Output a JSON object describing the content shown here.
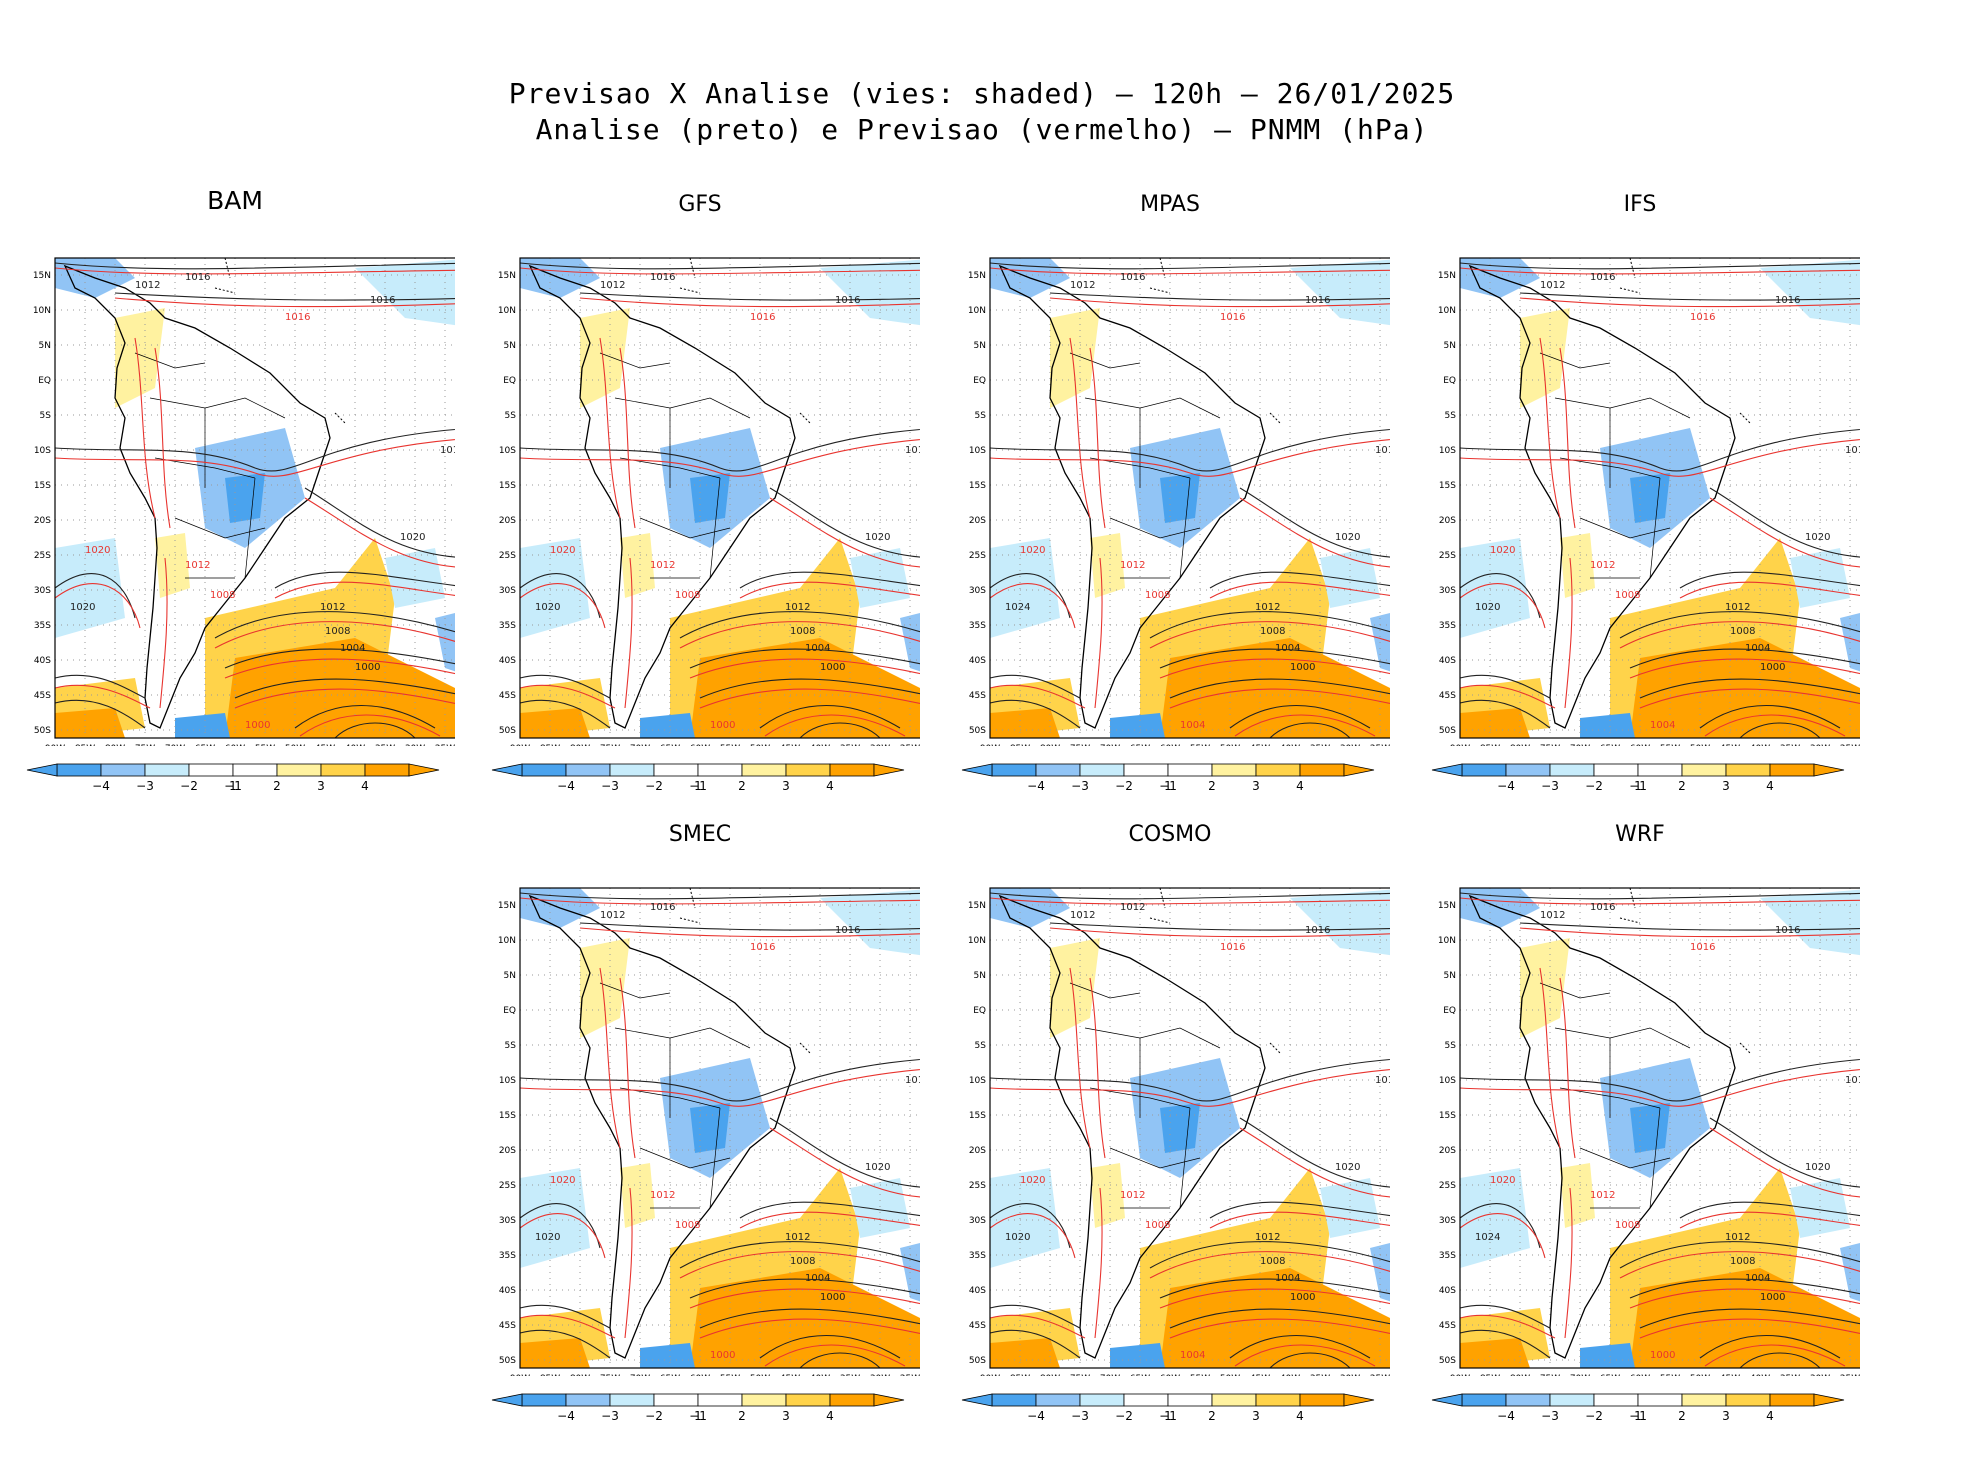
{
  "title": {
    "line1": "Previsao X Analise (vies: shaded) — 120h — 26/01/2025",
    "line2": "Analise (preto) e Previsao (vermelho) — PNMM (hPa)"
  },
  "colors": {
    "analysis": "#222222",
    "forecast": "#e8342f",
    "neg4": "#4aa3ee",
    "neg3": "#91c4f5",
    "neg2": "#c7ecfb",
    "pos2": "#fff2a0",
    "pos3": "#ffd34a",
    "pos4": "#ffa200"
  },
  "axes": {
    "lat_labels": [
      "15N",
      "10N",
      "5N",
      "EQ",
      "5S",
      "10S",
      "15S",
      "20S",
      "25S",
      "30S",
      "35S",
      "40S",
      "45S",
      "50S"
    ],
    "lon_labels": [
      "90W",
      "85W",
      "80W",
      "75W",
      "70W",
      "65W",
      "60W",
      "55W",
      "50W",
      "45W",
      "40W",
      "35W",
      "30W",
      "25W",
      "20W"
    ]
  },
  "colorbar": {
    "labels": [
      "−4",
      "−3",
      "−2",
      "−1",
      "1",
      "2",
      "3",
      "4"
    ]
  },
  "panels": [
    {
      "name": "BAM",
      "labels": {
        "l1016a": "1016",
        "l1016b": "1016",
        "l1016c": "1016",
        "l1012a": "1012",
        "l1012b": "1012",
        "l1008": "1008",
        "l1004": "1004",
        "l1000": "1000",
        "l1020a": "1020",
        "l1020b": "1020",
        "r1016": "1016",
        "r1012": "1012",
        "r1020": "1020",
        "r1008": "1008",
        "r1000": "1000"
      }
    },
    {
      "name": "GFS",
      "labels": {
        "l1016a": "1016",
        "l1016b": "1016",
        "l1016c": "1016",
        "l1012a": "1012",
        "l1012b": "1012",
        "l1008": "1008",
        "l1004": "1004",
        "l1000": "1000",
        "l1020a": "1020",
        "l1020b": "1020",
        "r1016": "1016",
        "r1012": "1012",
        "r1020": "1020",
        "r1008": "1008",
        "r1000": "1000"
      }
    },
    {
      "name": "MPAS",
      "labels": {
        "l1016a": "1016",
        "l1016b": "1016",
        "l1016c": "1016",
        "l1012a": "1012",
        "l1012b": "1012",
        "l1008": "1008",
        "l1004": "1004",
        "l1000": "1000",
        "l1020a": "1020",
        "l1020b": "1024",
        "r1016": "1016",
        "r1012": "1012",
        "r1020": "1020",
        "r1008": "1008",
        "r1000": "1004"
      }
    },
    {
      "name": "IFS",
      "labels": {
        "l1016a": "1016",
        "l1016b": "1016",
        "l1016c": "1016",
        "l1012a": "1012",
        "l1012b": "1012",
        "l1008": "1008",
        "l1004": "1004",
        "l1000": "1000",
        "l1020a": "1020",
        "l1020b": "1020",
        "r1016": "1016",
        "r1012": "1012",
        "r1020": "1020",
        "r1008": "1008",
        "r1000": "1004"
      }
    },
    {
      "name": "SMEC",
      "labels": {
        "l1016a": "1016",
        "l1016b": "1016",
        "l1016c": "1016",
        "l1012a": "1012",
        "l1012b": "1012",
        "l1008": "1008",
        "l1004": "1004",
        "l1000": "1000",
        "l1020a": "1020",
        "l1020b": "1020",
        "r1016": "1016",
        "r1012": "1012",
        "r1020": "1020",
        "r1008": "1008",
        "r1000": "1000"
      }
    },
    {
      "name": "COSMO",
      "labels": {
        "l1016a": "1012",
        "l1016b": "1016",
        "l1016c": "1016",
        "l1012a": "1012",
        "l1012b": "1012",
        "l1008": "1008",
        "l1004": "1004",
        "l1000": "1000",
        "l1020a": "1020",
        "l1020b": "1020",
        "r1016": "1016",
        "r1012": "1012",
        "r1020": "1020",
        "r1008": "1008",
        "r1000": "1004"
      }
    },
    {
      "name": "WRF",
      "labels": {
        "l1016a": "1016",
        "l1016b": "1016",
        "l1016c": "1016",
        "l1012a": "1012",
        "l1012b": "1012",
        "l1008": "1008",
        "l1004": "1004",
        "l1000": "1000",
        "l1020a": "1020",
        "l1020b": "1024",
        "r1016": "1016",
        "r1012": "1012",
        "r1020": "1020",
        "r1008": "1008",
        "r1000": "1000"
      }
    }
  ]
}
